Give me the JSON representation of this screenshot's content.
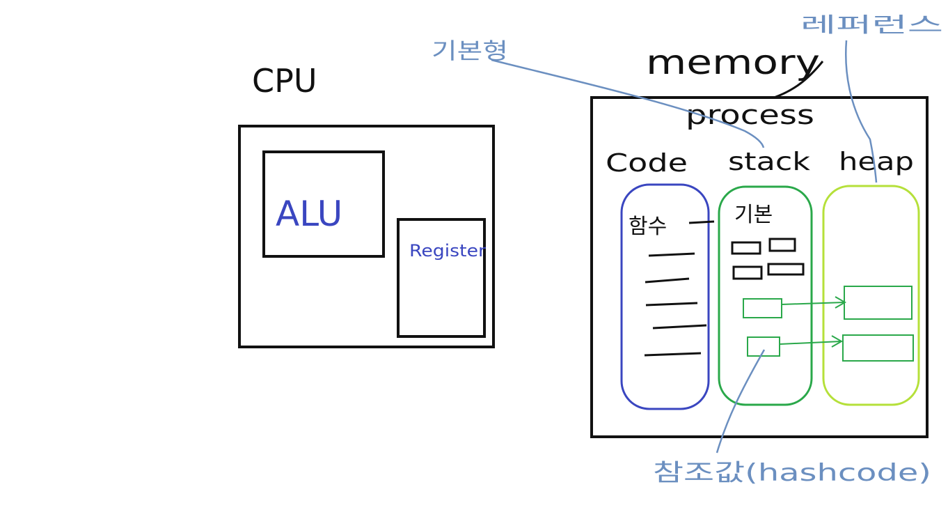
{
  "cpu": {
    "title": "CPU",
    "alu_label": "ALU",
    "register_label": "Register"
  },
  "memory": {
    "title": "memory",
    "process_label": "process",
    "segments": {
      "code": "Code",
      "stack": "stack",
      "heap": "heap"
    },
    "code_note": "함수",
    "stack_note": "기본"
  },
  "annotations": {
    "primitive": "기본형",
    "reference": "레퍼런스",
    "reference_value": "참조값(hashcode)"
  },
  "colors": {
    "code_segment": "#3a46c0",
    "stack_segment": "#2aa84a",
    "heap_segment": "#b5e03a",
    "annotation": "#6b8fc0",
    "ink": "#111111"
  }
}
